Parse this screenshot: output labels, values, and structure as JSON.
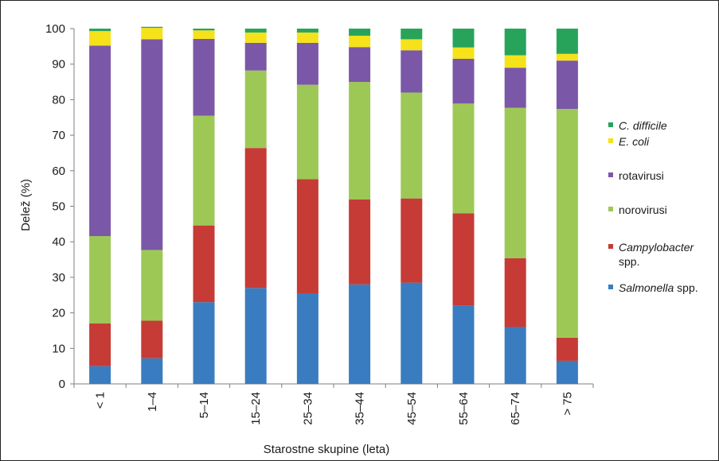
{
  "chart_data": {
    "type": "bar",
    "stacked": true,
    "percent": true,
    "xlabel": "Starostne skupine (leta)",
    "ylabel": "Delež (%)",
    "ylim": [
      0,
      100
    ],
    "yticks": [
      0,
      10,
      20,
      30,
      40,
      50,
      60,
      70,
      80,
      90,
      100
    ],
    "grid": false,
    "legend_position": "right",
    "categories": [
      "< 1",
      "1–4",
      "5–14",
      "15–24",
      "25–34",
      "35–44",
      "45–54",
      "55–64",
      "65–74",
      "> 75"
    ],
    "series": [
      {
        "name": "Salmonella spp.",
        "name_italic": "Salmonella",
        "name_suffix": " spp.",
        "color": "#3a7cc0",
        "values": [
          5,
          7.2,
          23,
          27,
          25.5,
          28,
          28.5,
          22,
          16,
          6.5
        ]
      },
      {
        "name": "Campylobacter spp.",
        "name_italic": "Campylobacter",
        "name_suffix": "spp.",
        "color": "#c63b36",
        "values": [
          12,
          10.6,
          21.6,
          39.4,
          32.1,
          23.9,
          23.7,
          26,
          19.4,
          6.5
        ]
      },
      {
        "name": "norovirusi",
        "name_italic": "",
        "name_suffix": "norovirusi",
        "color": "#9dc856",
        "values": [
          24.6,
          19.9,
          30.9,
          21.8,
          26.6,
          33.1,
          29.8,
          30.9,
          42.3,
          64.4
        ]
      },
      {
        "name": "rotavirusi",
        "name_italic": "",
        "name_suffix": "rotavirusi",
        "color": "#7b57a8",
        "values": [
          53.6,
          59.3,
          21.6,
          7.8,
          11.8,
          9.8,
          11.9,
          12.6,
          11.3,
          13.6
        ]
      },
      {
        "name": "E. coli",
        "name_italic": "E. coli",
        "name_suffix": "",
        "color": "#f5e21a",
        "values": [
          4.1,
          3.2,
          2.4,
          2.9,
          2.9,
          3.2,
          3.1,
          3.2,
          3.5,
          1.9
        ]
      },
      {
        "name": "C. difficile",
        "name_italic": "C. difficile",
        "name_suffix": "",
        "color": "#27a45a",
        "values": [
          0.7,
          0.3,
          0.5,
          1.1,
          1.1,
          2,
          3,
          5.3,
          7.5,
          7.1
        ]
      }
    ]
  }
}
